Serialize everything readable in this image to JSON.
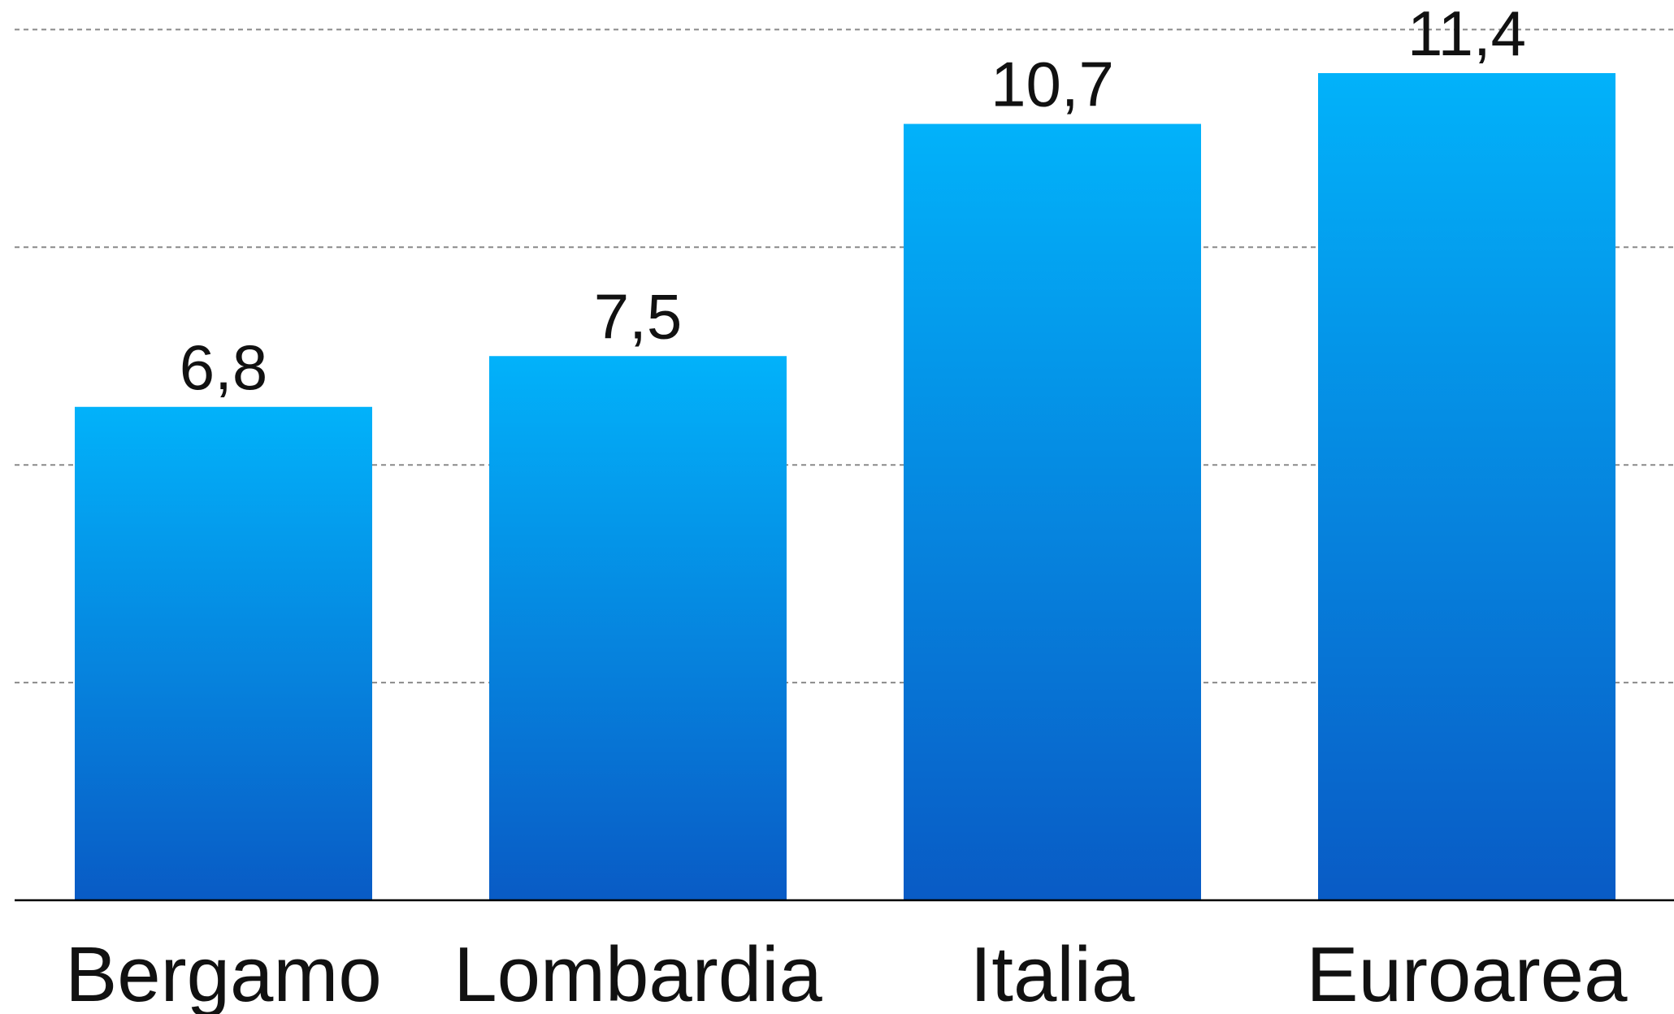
{
  "chart_data": {
    "type": "bar",
    "title": "",
    "xlabel": "",
    "ylabel": "",
    "categories": [
      "Bergamo",
      "Lombardia",
      "Italia",
      "Euroarea"
    ],
    "values": [
      6.8,
      7.5,
      10.7,
      11.4
    ],
    "value_labels": [
      "6,8",
      "7,5",
      "10,7",
      "11,4"
    ],
    "ylim": [
      0,
      12
    ],
    "gridlines": [
      3,
      6,
      9,
      12
    ],
    "grid": true,
    "legend": "none",
    "colors": {
      "bar_top": "#02b2fa",
      "bar_bottom": "#095bc5",
      "grid": "#8a8a8a",
      "axis": "#000000"
    }
  }
}
